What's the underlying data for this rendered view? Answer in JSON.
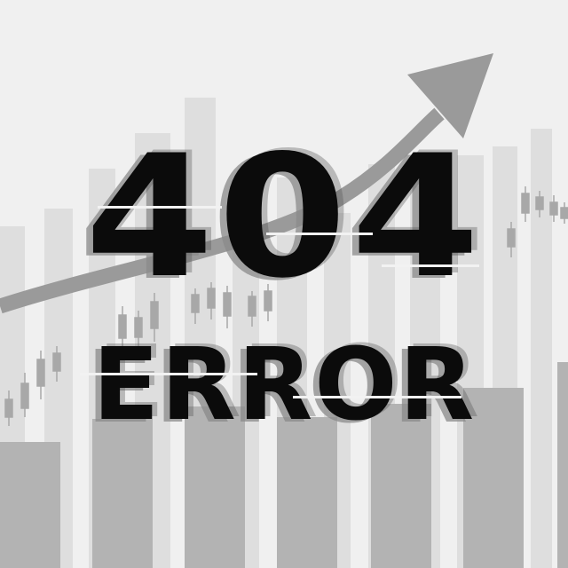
{
  "headline": "404",
  "subheadline": "ERROR",
  "colors": {
    "background": "#f0f0f0",
    "text": "#0b0b0b",
    "ghost": "#8a8a8a",
    "bar_light": "#dedede",
    "bar_dark": "#b0b0b0",
    "arrow": "#9a9a9a",
    "candle": "#a8a8a8"
  },
  "icons": [
    "trend-arrow-icon"
  ]
}
